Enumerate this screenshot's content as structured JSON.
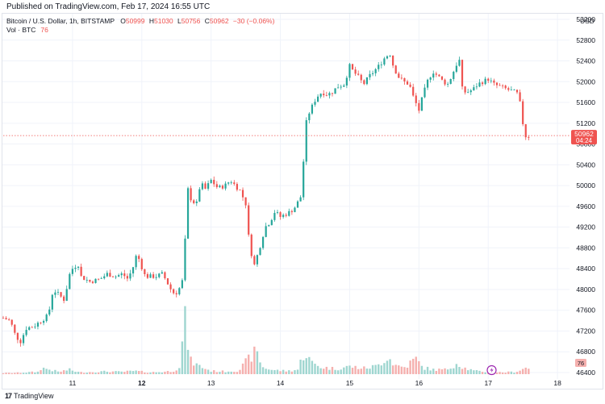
{
  "header": {
    "published": "Published on TradingView.com, Feb 17, 2024 16:55 UTC"
  },
  "legend": {
    "symbol": "Bitcoin / U.S. Dollar, 1h, BITSTAMP",
    "o_label": "O",
    "o_value": "50999",
    "h_label": "H",
    "h_value": "51030",
    "l_label": "L",
    "l_value": "50756",
    "c_label": "C",
    "c_value": "50962",
    "change": "−30 (−0.06%)",
    "vol_label": "Vol · BTC",
    "vol_value": "76"
  },
  "currency": "USD",
  "footer": {
    "logo_text": "17",
    "brand": "TradingView"
  },
  "colors": {
    "up": "#26a69a",
    "down": "#ef5350",
    "vol_up": "#9fd6d0",
    "vol_down": "#f5b0ae",
    "grid": "#f0f3fa",
    "axis_text": "#131722"
  },
  "chart_data": {
    "type": "candlestick",
    "y_ticks": [
      46400,
      46800,
      47200,
      47600,
      48000,
      48400,
      48800,
      49200,
      49600,
      50000,
      50400,
      50800,
      51200,
      51600,
      52000,
      52400,
      52800,
      53200
    ],
    "x_ticks": [
      {
        "label": "11",
        "day": 11,
        "bold": false
      },
      {
        "label": "12",
        "day": 12,
        "bold": true
      },
      {
        "label": "13",
        "day": 13,
        "bold": false
      },
      {
        "label": "14",
        "day": 14,
        "bold": false
      },
      {
        "label": "15",
        "day": 15,
        "bold": false
      },
      {
        "label": "16",
        "day": 16,
        "bold": false
      },
      {
        "label": "17",
        "day": 17,
        "bold": false
      },
      {
        "label": "18",
        "day": 18,
        "bold": false
      }
    ],
    "last_price": "50962",
    "countdown": "04:24",
    "last_volume": "76",
    "ylim": [
      46400,
      53200
    ],
    "xlim_days": [
      10.0,
      18.15
    ],
    "close_path": [
      [
        10.0,
        47450
      ],
      [
        10.1,
        47400
      ],
      [
        10.18,
        47100
      ],
      [
        10.25,
        47000
      ],
      [
        10.33,
        47250
      ],
      [
        10.45,
        47300
      ],
      [
        10.55,
        47400
      ],
      [
        10.65,
        47500
      ],
      [
        10.72,
        48000
      ],
      [
        10.8,
        47900
      ],
      [
        10.88,
        47800
      ],
      [
        10.96,
        48300
      ],
      [
        11.0,
        48400
      ],
      [
        11.08,
        48500
      ],
      [
        11.12,
        48250
      ],
      [
        11.25,
        48150
      ],
      [
        11.4,
        48200
      ],
      [
        11.5,
        48300
      ],
      [
        11.62,
        48250
      ],
      [
        11.72,
        48300
      ],
      [
        11.8,
        48200
      ],
      [
        11.88,
        48450
      ],
      [
        11.93,
        48700
      ],
      [
        11.98,
        48500
      ],
      [
        12.05,
        48250
      ],
      [
        12.1,
        48250
      ],
      [
        12.2,
        48250
      ],
      [
        12.3,
        48300
      ],
      [
        12.42,
        48000
      ],
      [
        12.48,
        47900
      ],
      [
        12.58,
        48100
      ],
      [
        12.62,
        48800
      ],
      [
        12.66,
        49950
      ],
      [
        12.72,
        49700
      ],
      [
        12.8,
        49650
      ],
      [
        12.85,
        50100
      ],
      [
        12.9,
        49900
      ],
      [
        13.0,
        50100
      ],
      [
        13.1,
        49950
      ],
      [
        13.2,
        50000
      ],
      [
        13.28,
        50100
      ],
      [
        13.35,
        50000
      ],
      [
        13.42,
        49900
      ],
      [
        13.5,
        49650
      ],
      [
        13.55,
        48900
      ],
      [
        13.62,
        48450
      ],
      [
        13.7,
        48800
      ],
      [
        13.78,
        49200
      ],
      [
        13.85,
        49300
      ],
      [
        13.92,
        49500
      ],
      [
        14.0,
        49400
      ],
      [
        14.08,
        49450
      ],
      [
        14.15,
        49500
      ],
      [
        14.22,
        49600
      ],
      [
        14.3,
        49800
      ],
      [
        14.35,
        50800
      ],
      [
        14.38,
        51300
      ],
      [
        14.45,
        51500
      ],
      [
        14.52,
        51700
      ],
      [
        14.6,
        51800
      ],
      [
        14.68,
        51750
      ],
      [
        14.75,
        51800
      ],
      [
        14.82,
        51900
      ],
      [
        14.92,
        51950
      ],
      [
        15.0,
        52300
      ],
      [
        15.05,
        52200
      ],
      [
        15.12,
        52100
      ],
      [
        15.2,
        51950
      ],
      [
        15.28,
        52100
      ],
      [
        15.35,
        52200
      ],
      [
        15.42,
        52300
      ],
      [
        15.5,
        52450
      ],
      [
        15.58,
        52550
      ],
      [
        15.63,
        52300
      ],
      [
        15.7,
        52100
      ],
      [
        15.78,
        52000
      ],
      [
        15.86,
        51950
      ],
      [
        15.92,
        51700
      ],
      [
        16.0,
        51450
      ],
      [
        16.05,
        51700
      ],
      [
        16.12,
        52000
      ],
      [
        16.2,
        52200
      ],
      [
        16.28,
        52100
      ],
      [
        16.35,
        52000
      ],
      [
        16.42,
        51950
      ],
      [
        16.5,
        52200
      ],
      [
        16.58,
        52450
      ],
      [
        16.63,
        51800
      ],
      [
        16.7,
        51800
      ],
      [
        16.78,
        51850
      ],
      [
        16.85,
        51950
      ],
      [
        16.92,
        52000
      ],
      [
        17.0,
        52050
      ],
      [
        17.08,
        51950
      ],
      [
        17.18,
        51900
      ],
      [
        17.28,
        51850
      ],
      [
        17.38,
        51800
      ],
      [
        17.44,
        51750
      ],
      [
        17.5,
        51200
      ],
      [
        17.55,
        50900
      ],
      [
        17.6,
        50962
      ]
    ],
    "volume_profile": [
      [
        10.0,
        5
      ],
      [
        10.2,
        6
      ],
      [
        10.35,
        8
      ],
      [
        10.5,
        10
      ],
      [
        10.55,
        28
      ],
      [
        10.65,
        22
      ],
      [
        10.8,
        10
      ],
      [
        10.95,
        20
      ],
      [
        11.1,
        8
      ],
      [
        11.3,
        10
      ],
      [
        11.5,
        12
      ],
      [
        11.7,
        10
      ],
      [
        11.9,
        14
      ],
      [
        12.1,
        8
      ],
      [
        12.3,
        10
      ],
      [
        12.45,
        14
      ],
      [
        12.55,
        35
      ],
      [
        12.62,
        240
      ],
      [
        12.7,
        60
      ],
      [
        12.8,
        40
      ],
      [
        13.0,
        14
      ],
      [
        13.2,
        12
      ],
      [
        13.4,
        16
      ],
      [
        13.55,
        70
      ],
      [
        13.65,
        100
      ],
      [
        13.75,
        30
      ],
      [
        13.9,
        18
      ],
      [
        14.1,
        14
      ],
      [
        14.25,
        20
      ],
      [
        14.35,
        100
      ],
      [
        14.45,
        50
      ],
      [
        14.6,
        30
      ],
      [
        14.8,
        24
      ],
      [
        15.0,
        34
      ],
      [
        15.2,
        26
      ],
      [
        15.4,
        36
      ],
      [
        15.55,
        80
      ],
      [
        15.65,
        40
      ],
      [
        15.8,
        30
      ],
      [
        15.95,
        70
      ],
      [
        16.05,
        30
      ],
      [
        16.2,
        20
      ],
      [
        16.4,
        20
      ],
      [
        16.55,
        50
      ],
      [
        16.65,
        28
      ],
      [
        16.8,
        14
      ],
      [
        17.0,
        10
      ],
      [
        17.2,
        8
      ],
      [
        17.4,
        10
      ],
      [
        17.55,
        30
      ],
      [
        17.6,
        20
      ]
    ]
  }
}
